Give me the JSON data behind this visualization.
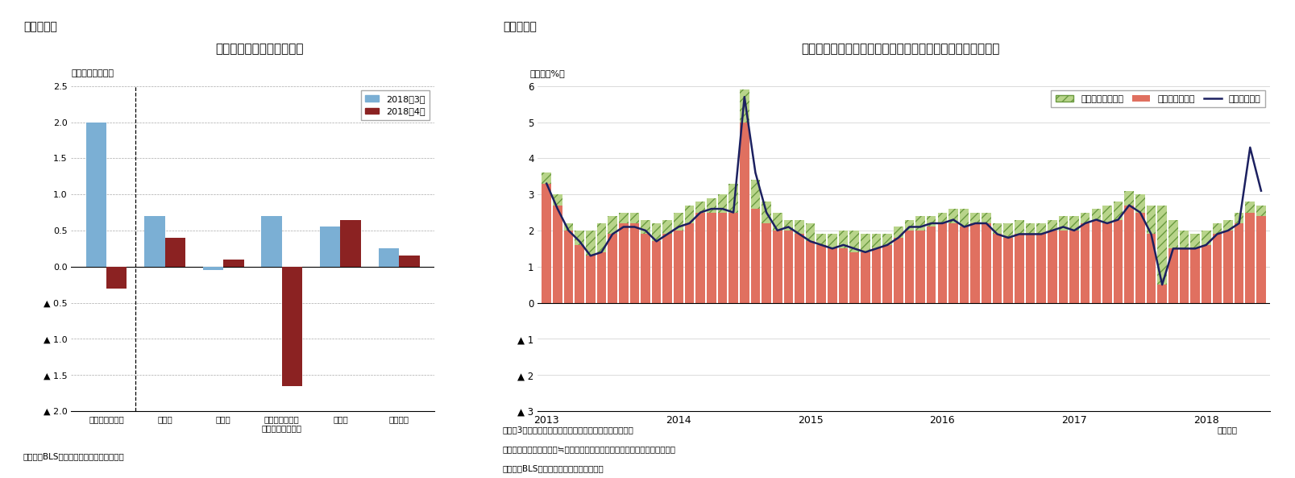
{
  "chart3": {
    "title": "前月分・前々月分の改定幅",
    "ylabel": "（前月差、万人）",
    "categories": [
      "非農業部門合計",
      "建設業",
      "製造業",
      "民間サービス業\n（小売業を除く）",
      "小売業",
      "政府部門"
    ],
    "series_march": [
      2.0,
      0.7,
      -0.05,
      0.7,
      0.55,
      0.25
    ],
    "series_april": [
      -0.3,
      0.4,
      0.1,
      -1.65,
      0.65,
      0.15
    ],
    "color_march": "#7BAFD4",
    "color_april": "#8B2222",
    "legend_march": "2018年3月",
    "legend_april": "2018年4月",
    "ylim": [
      -2.0,
      2.5
    ],
    "yticks": [
      2.5,
      2.0,
      1.5,
      1.0,
      0.5,
      0.0,
      -0.5,
      -1.0,
      -1.5,
      -2.0
    ],
    "source": "（資料）BLSよりニッセイ基礎研究所作成",
    "header": "（図表３）"
  },
  "chart4": {
    "title": "民間非農業部門の週当たり賃金伸び率（年率換算、寄与度）",
    "yaxislabel": "（年率、%）",
    "legend_hours": "週当たり労働時間",
    "legend_hourly": "時間当たり賃金",
    "legend_weekly": "週当たり賃金",
    "color_hours": "#B8D48A",
    "color_hourly": "#E07060",
    "color_line": "#1C2060",
    "ylim": [
      -3.0,
      6.0
    ],
    "yticks": [
      6,
      5,
      4,
      3,
      2,
      1,
      0,
      -1,
      -2,
      -3
    ],
    "note1": "（注）3カ月後方移動平均後の前月比伸び率（年率換算）",
    "note2": "　　週当たり賃金伸び率≒週当たり労働時間伸び率＋時間当たり賃金伸び率",
    "note3": "（資料）BLSよりニッセイ基礎研究所作成",
    "note4": "（月次）",
    "header": "（図表４）",
    "hours_data": [
      -0.3,
      -0.3,
      -0.2,
      -0.4,
      -0.7,
      -0.8,
      -0.5,
      -0.3,
      -0.3,
      -0.4,
      -0.5,
      -0.4,
      -0.5,
      -0.5,
      -0.3,
      -0.4,
      -0.5,
      -0.8,
      -0.9,
      -0.8,
      -0.6,
      -0.5,
      -0.3,
      -0.4,
      -0.5,
      -0.3,
      -0.4,
      -0.5,
      -0.6,
      -0.5,
      -0.4,
      -0.3,
      -0.3,
      -0.3,
      -0.4,
      -0.3,
      -0.3,
      -0.4,
      -0.5,
      -0.3,
      -0.3,
      -0.3,
      -0.4,
      -0.4,
      -0.3,
      -0.3,
      -0.3,
      -0.4,
      -0.4,
      -0.3,
      -0.3,
      -0.5,
      -0.5,
      -0.4,
      -0.5,
      -0.8,
      -2.2,
      -0.8,
      -0.5,
      -0.4,
      -0.4,
      -0.3,
      -0.3,
      -0.3,
      -0.3,
      -0.3
    ],
    "hourly_data": [
      3.6,
      3.0,
      2.2,
      2.0,
      2.0,
      2.2,
      2.4,
      2.5,
      2.5,
      2.3,
      2.2,
      2.3,
      2.5,
      2.7,
      2.8,
      2.9,
      3.0,
      3.3,
      5.9,
      3.4,
      2.8,
      2.5,
      2.3,
      2.3,
      2.2,
      1.9,
      1.9,
      2.0,
      2.0,
      1.9,
      1.9,
      1.9,
      2.1,
      2.3,
      2.4,
      2.4,
      2.5,
      2.6,
      2.6,
      2.5,
      2.5,
      2.2,
      2.2,
      2.3,
      2.2,
      2.2,
      2.3,
      2.4,
      2.4,
      2.5,
      2.6,
      2.7,
      2.8,
      3.1,
      3.0,
      2.7,
      2.7,
      2.3,
      2.0,
      1.9,
      2.0,
      2.2,
      2.3,
      2.5,
      2.8,
      2.7
    ],
    "line_data": [
      3.3,
      2.6,
      2.0,
      1.7,
      1.3,
      1.4,
      1.9,
      2.1,
      2.1,
      2.0,
      1.7,
      1.9,
      2.1,
      2.2,
      2.5,
      2.6,
      2.6,
      2.5,
      5.7,
      3.6,
      2.5,
      2.0,
      2.1,
      1.9,
      1.7,
      1.6,
      1.5,
      1.6,
      1.5,
      1.4,
      1.5,
      1.6,
      1.8,
      2.1,
      2.1,
      2.2,
      2.2,
      2.3,
      2.1,
      2.2,
      2.2,
      1.9,
      1.8,
      1.9,
      1.9,
      1.9,
      2.0,
      2.1,
      2.0,
      2.2,
      2.3,
      2.2,
      2.3,
      2.7,
      2.5,
      1.9,
      0.5,
      1.5,
      1.5,
      1.5,
      1.6,
      1.9,
      2.0,
      2.2,
      4.3,
      3.1
    ],
    "n_months": 66,
    "x_ticklabels": [
      "2013",
      "2014",
      "2015",
      "2016",
      "2017",
      "2018"
    ],
    "x_tick_positions": [
      0,
      12,
      24,
      36,
      48,
      60
    ]
  }
}
